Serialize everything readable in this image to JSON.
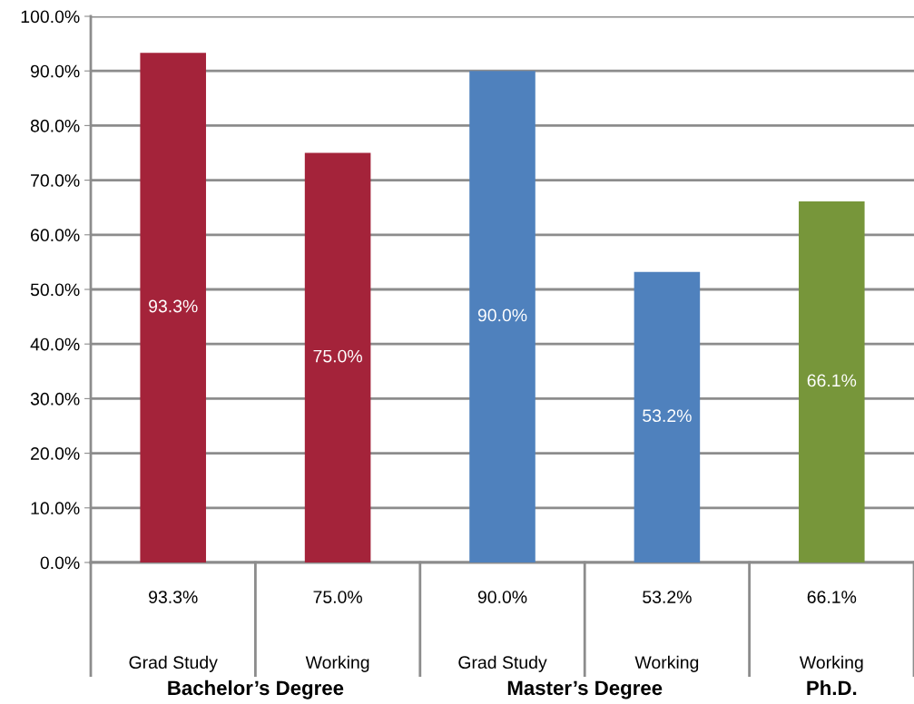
{
  "chart_data": {
    "type": "bar",
    "categories": [
      "Grad Study",
      "Working",
      "Grad Study",
      "Working",
      "Working"
    ],
    "values": [
      93.3,
      75.0,
      90.0,
      53.2,
      66.1
    ],
    "colors": [
      "#a4233a",
      "#a4233a",
      "#4f81bd",
      "#4f81bd",
      "#77963a"
    ],
    "annotations": [
      "Bachelor’s Degree",
      "Master’s Degree",
      "Ph.D."
    ],
    "value_labels": [
      "93.3%",
      "75.0%",
      "90.0%",
      "53.2%",
      "66.1%"
    ],
    "ylim": [
      0,
      100
    ],
    "yticks": [
      {
        "value": 0,
        "label": "0.0%"
      },
      {
        "value": 10,
        "label": "10.0%"
      },
      {
        "value": 20,
        "label": "20.0%"
      },
      {
        "value": 30,
        "label": "30.0%"
      },
      {
        "value": 40,
        "label": "40.0%"
      },
      {
        "value": 50,
        "label": "50.0%"
      },
      {
        "value": 60,
        "label": "60.0%"
      },
      {
        "value": 70,
        "label": "70.0%"
      },
      {
        "value": 80,
        "label": "80.0%"
      },
      {
        "value": 90,
        "label": "90.0%"
      },
      {
        "value": 100,
        "label": "100.0%"
      }
    ],
    "grid": "y",
    "legend": false
  }
}
